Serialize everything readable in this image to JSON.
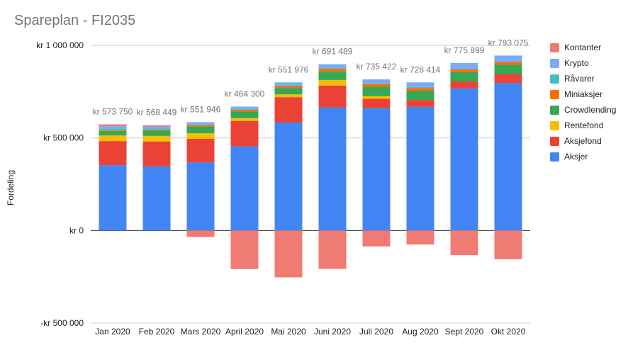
{
  "chart_data": {
    "type": "bar",
    "stacked": true,
    "title": "Spareplan - FI2035",
    "xlabel": "",
    "ylabel": "Fordeling",
    "ylim": [
      -500000,
      1000000
    ],
    "y_ticks": [
      1000000,
      500000,
      0,
      -500000
    ],
    "y_tick_labels": [
      "kr 1 000 000",
      "kr 500 000",
      "kr    0",
      "-kr  500 000"
    ],
    "grid": true,
    "legend_position": "right",
    "categories": [
      "Jan 2020",
      "Feb 2020",
      "Mars 2020",
      "April 2020",
      "Mai 2020",
      "Juni 2020",
      "Juli 2020",
      "Aug 2020",
      "Sept 2020",
      "Okt 2020"
    ],
    "totals_labels": [
      "kr  573 750",
      "kr  568 449",
      "kr  551 946",
      "kr  464 300",
      "kr  551 976",
      "kr  691 489",
      "kr  735 422",
      "kr  728 414",
      "kr  775 899",
      "kr  793 075"
    ],
    "series": [
      {
        "name": "Aksjer",
        "color": "#4285f4",
        "values": [
          353000,
          346000,
          368000,
          455000,
          583000,
          665000,
          662000,
          668000,
          767000,
          797000
        ]
      },
      {
        "name": "Aksjefond",
        "color": "#ea4335",
        "values": [
          130000,
          135000,
          127000,
          137000,
          137000,
          118000,
          49000,
          37000,
          38000,
          48000
        ]
      },
      {
        "name": "Rentefond",
        "color": "#fbbc04",
        "values": [
          30000,
          30000,
          30000,
          15000,
          15000,
          30000,
          15000,
          0,
          0,
          0
        ]
      },
      {
        "name": "Crowdlending",
        "color": "#34a853",
        "values": [
          25000,
          28000,
          35000,
          35000,
          35000,
          45000,
          50000,
          50000,
          50000,
          50000
        ]
      },
      {
        "name": "Miniaksjer",
        "color": "#ff6d01",
        "values": [
          5000,
          5000,
          8000,
          10000,
          10000,
          15000,
          15000,
          15000,
          15000,
          15000
        ]
      },
      {
        "name": "Råvarer",
        "color": "#46bdc6",
        "values": [
          8000,
          8000,
          5000,
          5000,
          5000,
          5000,
          5000,
          5000,
          0,
          0
        ]
      },
      {
        "name": "Krypto",
        "color": "#7baaf7",
        "values": [
          12000,
          10000,
          12000,
          12000,
          15000,
          20000,
          20000,
          25000,
          35000,
          35000
        ]
      },
      {
        "name": "Kontanter",
        "color": "#f07b72",
        "values": [
          10000,
          7000,
          -35000,
          -208000,
          -253000,
          -207000,
          -86000,
          -76000,
          -133000,
          -155000
        ]
      }
    ],
    "legend_order": [
      "Kontanter",
      "Krypto",
      "Råvarer",
      "Miniaksjer",
      "Crowdlending",
      "Rentefond",
      "Aksjefond",
      "Aksjer"
    ]
  }
}
